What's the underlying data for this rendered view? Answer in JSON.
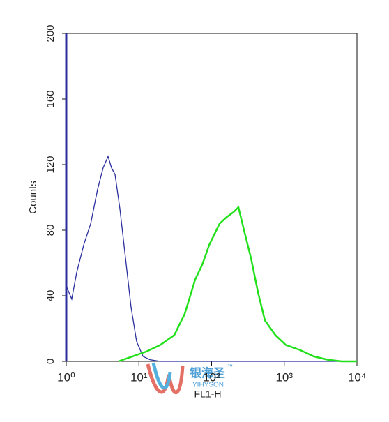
{
  "chart_data": {
    "type": "line",
    "xlabel": "FL1-H",
    "ylabel": "Counts",
    "xscale": "log",
    "xlim": [
      1,
      10000
    ],
    "xticks": [
      {
        "value": 1,
        "label": "10⁰"
      },
      {
        "value": 10,
        "label": "10¹"
      },
      {
        "value": 100,
        "label": "10²"
      },
      {
        "value": 1000,
        "label": "10³"
      },
      {
        "value": 10000,
        "label": "10⁴"
      }
    ],
    "ylim": [
      0,
      200
    ],
    "yticks": [
      0,
      40,
      80,
      120,
      160,
      200
    ],
    "series": [
      {
        "color": "#2b2f9e",
        "x": [
          1,
          1.19,
          1.39,
          1.74,
          2.17,
          2.7,
          3.22,
          3.76,
          4.2,
          4.69,
          5.48,
          6.54,
          7.8,
          9.31,
          11.4,
          14.2,
          19.7,
          10000
        ],
        "values": [
          46,
          38,
          54,
          71,
          84,
          105,
          118,
          125,
          118,
          114,
          93,
          63,
          33,
          12,
          3,
          1,
          0,
          0
        ]
      },
      {
        "color": "#22e01a",
        "x": [
          5.24,
          8.15,
          12.7,
          19.7,
          30.7,
          42.7,
          59.6,
          74.3,
          92.7,
          129,
          161,
          200,
          234,
          279,
          348,
          435,
          542,
          755,
          1052,
          1634,
          2541,
          3954,
          6152,
          10000
        ],
        "values": [
          0,
          3,
          6,
          10,
          16,
          29,
          50,
          59,
          71,
          84,
          88,
          91,
          94,
          80,
          63,
          42,
          25,
          16,
          10,
          7,
          3,
          1,
          0,
          0
        ]
      }
    ],
    "watermark": {
      "title": "银海圣",
      "subtitle": "YIHYSON",
      "mark": "™"
    }
  }
}
